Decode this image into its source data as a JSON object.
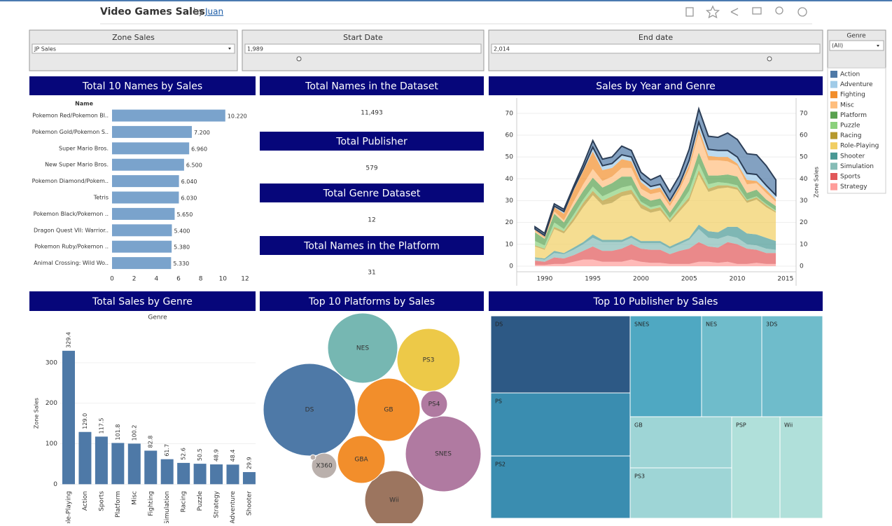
{
  "header": {
    "title": "Video Games Sales",
    "by": "by",
    "author": "Juan"
  },
  "filters": [
    {
      "label": "Zone Sales",
      "value": "JP Sales"
    },
    {
      "label": "Start Date",
      "value": "1,989"
    },
    {
      "label": "End date",
      "value": "2,014"
    }
  ],
  "genre_filter": {
    "label": "Genre",
    "value": "(All)"
  },
  "kpis": [
    {
      "title": "Total Names in the Dataset",
      "value": "11,493"
    },
    {
      "title": "Total Publisher",
      "value": 579
    },
    {
      "title": "Total Genre Dataset",
      "value": 12
    },
    {
      "title": "Total Names in the Platform",
      "value": 31
    }
  ],
  "chart_data": [
    {
      "type": "hbar",
      "title": "Total 10 Names by Sales",
      "ylabel": "Name",
      "color": "#7aa3cc",
      "categories": [
        "Pokemon Red/Pokemon Bl..",
        "Pokemon Gold/Pokemon S..",
        "Super Mario Bros.",
        "New Super Mario Bros.",
        "Pokemon Diamond/Pokem..",
        "Tetris",
        "Pokemon Black/Pokemon ..",
        "Dragon Quest VII: Warrior..",
        "Pokemon Ruby/Pokemon ..",
        "Animal Crossing: Wild Wo.."
      ],
      "values": [
        10.22,
        7.2,
        6.96,
        6.5,
        6.04,
        6.03,
        5.65,
        5.4,
        5.38,
        5.33
      ],
      "value_labels": [
        "10.220",
        "7.200",
        "6.960",
        "6.500",
        "6.040",
        "6.030",
        "5.650",
        "5.400",
        "5.380",
        "5.330"
      ],
      "xlim": [
        0,
        12.95
      ],
      "xticks": [
        0,
        2,
        4,
        6,
        8,
        10,
        12
      ]
    },
    {
      "type": "area",
      "title": "Sales by Year and Genre",
      "y2label": "Zone Sales",
      "stacked": true,
      "grid": true,
      "x": [
        1989,
        1990,
        1991,
        1992,
        1993,
        1994,
        1995,
        1996,
        1997,
        1998,
        1999,
        2000,
        2001,
        2002,
        2003,
        2004,
        2005,
        2006,
        2007,
        2008,
        2009,
        2010,
        2011,
        2012,
        2013,
        2014
      ],
      "series": [
        {
          "name": "Action",
          "color": "#4e79a7",
          "values": [
            1,
            1,
            1,
            1,
            1,
            2,
            3,
            3,
            3,
            4,
            3,
            3,
            3,
            4,
            4,
            4,
            5,
            6,
            6,
            6,
            8,
            8,
            9,
            9,
            9,
            7
          ]
        },
        {
          "name": "Adventure",
          "color": "#a0cbe8",
          "values": [
            0.5,
            0.5,
            0.5,
            1,
            1,
            1,
            2,
            2,
            2,
            2,
            2,
            1.5,
            1.5,
            1.5,
            1,
            1,
            2,
            3,
            3,
            3,
            3,
            3,
            3,
            3,
            2,
            2
          ]
        },
        {
          "name": "Fighting",
          "color": "#f28e2b",
          "values": [
            0.5,
            0.5,
            2,
            3,
            5,
            6,
            8,
            5,
            4,
            4,
            3,
            3,
            2,
            2,
            1.5,
            1.5,
            2,
            2,
            2,
            1.5,
            2,
            1,
            2,
            1,
            1.5,
            1
          ]
        },
        {
          "name": "Misc",
          "color": "#ffbe7d",
          "values": [
            0.5,
            0.5,
            1,
            1,
            2,
            3,
            4,
            3,
            3,
            4,
            4,
            3,
            3,
            3,
            3,
            4,
            6,
            9,
            7,
            7,
            6,
            5,
            4,
            3,
            3,
            2
          ]
        },
        {
          "name": "Platform",
          "color": "#59a14f",
          "values": [
            4,
            3,
            4,
            3,
            4,
            4,
            4,
            4,
            4,
            5,
            4,
            3,
            3,
            3,
            2.5,
            3,
            4,
            5,
            4,
            3,
            4,
            4,
            3,
            3,
            2,
            2
          ]
        },
        {
          "name": "Puzzle",
          "color": "#8cd17d",
          "values": [
            2,
            1.5,
            2,
            1,
            1.5,
            1.5,
            2,
            2,
            2,
            2,
            2,
            1,
            1,
            1,
            1,
            1.5,
            3,
            3,
            2,
            1.5,
            1,
            1,
            0.5,
            0.5,
            0.5,
            0.5
          ]
        },
        {
          "name": "Racing",
          "color": "#b6992d",
          "values": [
            0.5,
            0.5,
            1,
            1,
            1.5,
            2,
            2,
            2,
            3,
            2,
            2,
            2,
            1.5,
            1.5,
            1,
            1.5,
            1.5,
            2,
            1.5,
            1.5,
            1,
            1,
            1,
            1,
            1,
            0.5
          ]
        },
        {
          "name": "Role-Playing",
          "color": "#f1ce63",
          "values": [
            5,
            4,
            10,
            9,
            12,
            16,
            18,
            16,
            17,
            20,
            19,
            15,
            13,
            14,
            11,
            14,
            17,
            23,
            18,
            20,
            18,
            17,
            14,
            16,
            14,
            13
          ]
        },
        {
          "name": "Shooter",
          "color": "#499894",
          "values": [
            0.5,
            0.5,
            1,
            0.5,
            1,
            1,
            1.5,
            1,
            1,
            1,
            1,
            1,
            1,
            1,
            1,
            1,
            1,
            2,
            3,
            3,
            4,
            5,
            5,
            5,
            5,
            4
          ]
        },
        {
          "name": "Simulation",
          "color": "#86bcb6",
          "values": [
            1,
            1,
            2,
            2,
            2.5,
            3,
            4,
            4,
            4,
            3,
            3,
            2.5,
            3,
            3,
            2.5,
            3,
            4,
            6,
            4,
            4,
            3,
            3,
            2,
            2,
            2,
            1.5
          ]
        },
        {
          "name": "Sports",
          "color": "#e15759",
          "values": [
            2,
            1.5,
            3,
            2.5,
            3,
            4,
            6,
            5,
            5,
            6,
            7,
            6,
            6,
            6,
            4.5,
            6,
            7,
            9,
            7,
            7,
            9,
            9,
            7,
            6,
            5,
            5
          ]
        },
        {
          "name": "Strategy",
          "color": "#ff9d9a",
          "values": [
            0.5,
            0.5,
            1,
            1,
            2,
            3,
            3,
            2,
            2,
            2,
            3,
            2,
            1.5,
            1.5,
            1,
            1,
            1,
            2,
            2,
            1.5,
            2,
            1,
            1,
            1.5,
            1,
            1
          ]
        }
      ],
      "xlim": [
        1987.1,
        2016.1
      ],
      "xticks": [
        1990,
        1995,
        2000,
        2005,
        2010,
        2015
      ],
      "ylim": [
        -9,
        77
      ],
      "yticks": [
        0,
        10,
        20,
        30,
        40,
        50,
        60,
        70
      ],
      "y2lim": [
        -9,
        77
      ],
      "y2ticks": [
        0,
        10,
        20,
        30,
        40,
        50,
        60,
        70
      ]
    },
    {
      "type": "bar",
      "title": "Total Sales by Genre",
      "xlabel": "Genre",
      "ylabel": "Zone Sales",
      "color": "#4e79a7",
      "categories": [
        "Role-Playing",
        "Action",
        "Sports",
        "Platform",
        "Misc",
        "Fighting",
        "Simulation",
        "Racing",
        "Puzzle",
        "Strategy",
        "Adventure",
        "Shooter"
      ],
      "values": [
        329.4,
        129.0,
        117.5,
        101.8,
        100.2,
        82.8,
        61.7,
        52.6,
        50.5,
        48.9,
        48.4,
        29.9
      ],
      "value_labels": [
        "329.4",
        "129.0",
        "117.5",
        "101.8",
        "100.2",
        "82.8",
        "61.7",
        "52.6",
        "50.5",
        "48.9",
        "48.4",
        "29.9"
      ],
      "ylim": [
        -15,
        400
      ],
      "yticks": [
        0,
        100,
        200,
        300
      ]
    },
    {
      "type": "bubble",
      "title": "Top 10 Platforms by Sales",
      "categories": [
        "DS",
        "SNES",
        "NES",
        "GB",
        "PS3",
        "Wii",
        "GBA",
        "PS4",
        "X360",
        null
      ],
      "values": [
        175.6,
        117.5,
        100.8,
        81.6,
        81.6,
        71,
        46.6,
        14.5,
        13,
        0.6
      ],
      "colors": [
        "#4e79a7",
        "#b07aa1",
        "#76b7b2",
        "#f28e2b",
        "#edc948",
        "#9c755f",
        "#f28e2b",
        "#b07aa1",
        "#bab0ac",
        "#bab0ac"
      ]
    },
    {
      "type": "treemap",
      "title": "Top 10 Publisher by Sales",
      "categories": [
        "DS",
        "PS",
        "PS2",
        "SNES",
        "NES",
        "3DS",
        "GB",
        "PS3",
        "PSP",
        "Wii"
      ],
      "values": [
        175.6,
        139.8,
        139.2,
        116.6,
        98.7,
        97.4,
        85.1,
        79.9,
        76.8,
        69.3
      ],
      "colors": [
        "#2d5985",
        "#3a8db0",
        "#3a8db0",
        "#4fa8c2",
        "#6fbccb",
        "#6fbccb",
        "#9ed5d6",
        "#9ed5d6",
        "#b0e0da",
        "#b0e0da"
      ]
    }
  ]
}
